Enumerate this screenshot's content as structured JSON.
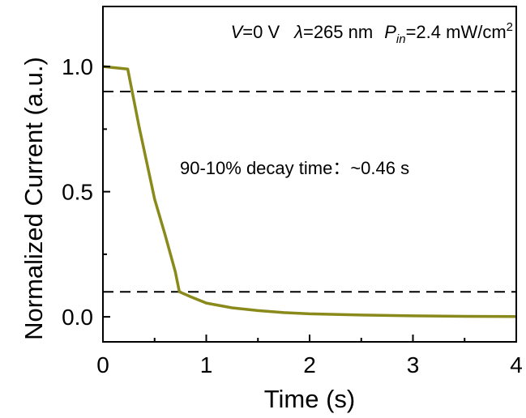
{
  "chart_data": {
    "type": "line",
    "xlabel": "Time (s)",
    "ylabel": "Normalized Current (a.u.)",
    "xlim": [
      0,
      4
    ],
    "ylim": [
      -0.1,
      1.24
    ],
    "x_ticks": [
      0,
      1,
      2,
      3,
      4
    ],
    "x_tick_labels": [
      "0",
      "1",
      "2",
      "3",
      "4"
    ],
    "y_ticks": [
      0.0,
      0.5,
      1.0
    ],
    "y_tick_labels": [
      "0.0",
      "0.5",
      "1.0"
    ],
    "y_minor_ticks": [
      0.25,
      0.75
    ],
    "x_minor_ticks": [
      0.5,
      1.5,
      2.5,
      3.5
    ],
    "grid": false,
    "series": [
      {
        "color": "#8a8a1c",
        "x": [
          0,
          0.24,
          0.35,
          0.5,
          0.6,
          0.7,
          0.74,
          0.85,
          1.0,
          1.25,
          1.5,
          1.75,
          2.0,
          2.5,
          3.0,
          3.5,
          4.0
        ],
        "y": [
          1.0,
          0.99,
          0.76,
          0.47,
          0.33,
          0.18,
          0.1,
          0.08,
          0.055,
          0.036,
          0.025,
          0.017,
          0.012,
          0.007,
          0.004,
          0.002,
          0.001
        ]
      }
    ],
    "reference_lines": [
      {
        "y": 0.9,
        "style": "dashed",
        "color": "#000000"
      },
      {
        "y": 0.1,
        "style": "dashed",
        "color": "#000000"
      }
    ],
    "annotations": {
      "conditions": {
        "v_sym": "V",
        "v_val": "=0 V",
        "lambda_sym": "λ",
        "lambda_val": "=265 nm",
        "p_sym": "P",
        "p_sub": "in",
        "p_val": "=2.4 mW/cm",
        "p_sup": "2"
      },
      "decay": "90-10% decay time：~0.46 s"
    }
  }
}
